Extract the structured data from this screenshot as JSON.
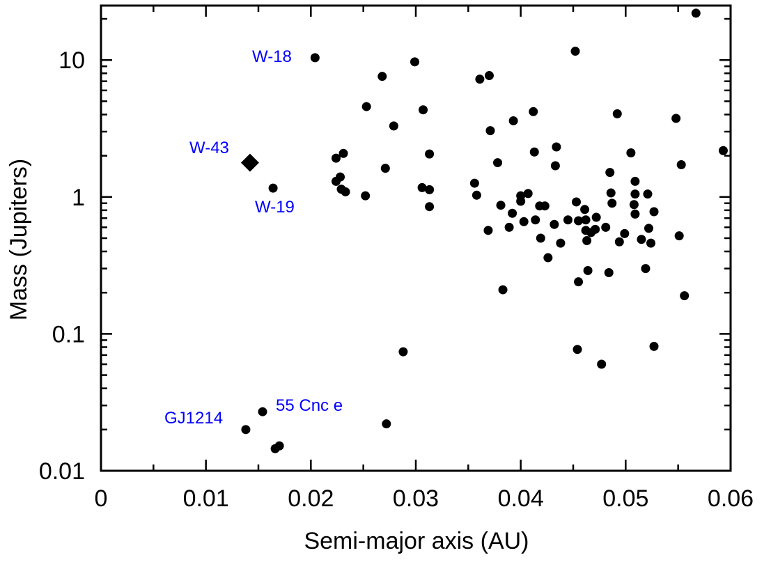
{
  "chart_data": {
    "type": "scatter",
    "title": "",
    "xlabel": "Semi-major axis (AU)",
    "ylabel": "Mass (Jupiters)",
    "xlim": [
      0,
      0.06
    ],
    "ylim": [
      0.01,
      25
    ],
    "yscale": "log",
    "grid": false,
    "x_ticks": [
      0,
      0.01,
      0.02,
      0.03,
      0.04,
      0.05,
      0.06
    ],
    "x_tick_labels": [
      "0",
      "0.01",
      "0.02",
      "0.03",
      "0.04",
      "0.05",
      "0.06"
    ],
    "y_ticks": [
      0.01,
      0.1,
      1,
      10
    ],
    "y_tick_labels": [
      "0.01",
      "0.1",
      "1",
      "10"
    ],
    "series": [
      {
        "marker": "circle",
        "color": "#000000",
        "points": [
          [
            0.0204,
            10.4
          ],
          [
            0.0164,
            1.16
          ],
          [
            0.0154,
            0.027
          ],
          [
            0.0138,
            0.02
          ],
          [
            0.0166,
            0.0145
          ],
          [
            0.017,
            0.0152
          ],
          [
            0.0224,
            1.92
          ],
          [
            0.0231,
            2.08
          ],
          [
            0.0224,
            1.3
          ],
          [
            0.0228,
            1.4
          ],
          [
            0.0229,
            1.14
          ],
          [
            0.0233,
            1.09
          ],
          [
            0.0253,
            4.57
          ],
          [
            0.0252,
            1.02
          ],
          [
            0.0268,
            7.6
          ],
          [
            0.0271,
            1.62
          ],
          [
            0.0279,
            3.3
          ],
          [
            0.0299,
            9.7
          ],
          [
            0.0307,
            4.33
          ],
          [
            0.0306,
            1.17
          ],
          [
            0.0313,
            2.06
          ],
          [
            0.0313,
            1.13
          ],
          [
            0.0313,
            0.85
          ],
          [
            0.0288,
            0.074
          ],
          [
            0.0272,
            0.022
          ],
          [
            0.0356,
            1.26
          ],
          [
            0.0358,
            1.03
          ],
          [
            0.0361,
            7.25
          ],
          [
            0.037,
            7.7
          ],
          [
            0.0371,
            3.05
          ],
          [
            0.0369,
            0.57
          ],
          [
            0.0378,
            1.78
          ],
          [
            0.0381,
            0.87
          ],
          [
            0.0383,
            0.21
          ],
          [
            0.0393,
            3.6
          ],
          [
            0.0389,
            0.6
          ],
          [
            0.0392,
            0.76
          ],
          [
            0.04,
            1.02
          ],
          [
            0.04,
            0.93
          ],
          [
            0.0403,
            0.66
          ],
          [
            0.0407,
            1.06
          ],
          [
            0.0412,
            4.2
          ],
          [
            0.0413,
            2.13
          ],
          [
            0.0414,
            0.68
          ],
          [
            0.0418,
            0.86
          ],
          [
            0.0419,
            0.5
          ],
          [
            0.0423,
            0.86
          ],
          [
            0.0426,
            0.36
          ],
          [
            0.0433,
            1.69
          ],
          [
            0.0434,
            2.32
          ],
          [
            0.0432,
            0.63
          ],
          [
            0.0438,
            0.46
          ],
          [
            0.0445,
            0.68
          ],
          [
            0.0452,
            11.6
          ],
          [
            0.0453,
            0.92
          ],
          [
            0.0455,
            0.67
          ],
          [
            0.0455,
            0.24
          ],
          [
            0.0454,
            0.077
          ],
          [
            0.0461,
            0.81
          ],
          [
            0.0462,
            0.68
          ],
          [
            0.0462,
            0.57
          ],
          [
            0.0463,
            0.48
          ],
          [
            0.0464,
            0.29
          ],
          [
            0.0467,
            0.55
          ],
          [
            0.0471,
            0.58
          ],
          [
            0.0472,
            0.71
          ],
          [
            0.0477,
            0.06
          ],
          [
            0.0481,
            0.6
          ],
          [
            0.0484,
            0.28
          ],
          [
            0.0485,
            1.51
          ],
          [
            0.0486,
            1.07
          ],
          [
            0.0487,
            0.9
          ],
          [
            0.0492,
            4.05
          ],
          [
            0.0494,
            0.47
          ],
          [
            0.0499,
            0.54
          ],
          [
            0.0505,
            2.1
          ],
          [
            0.0508,
            0.88
          ],
          [
            0.0509,
            0.75
          ],
          [
            0.0509,
            1.3
          ],
          [
            0.0509,
            1.05
          ],
          [
            0.0515,
            0.49
          ],
          [
            0.0519,
            0.3
          ],
          [
            0.0521,
            1.05
          ],
          [
            0.0522,
            0.59
          ],
          [
            0.0524,
            0.46
          ],
          [
            0.0527,
            0.78
          ],
          [
            0.0527,
            0.081
          ],
          [
            0.0548,
            3.75
          ],
          [
            0.0551,
            0.52
          ],
          [
            0.0553,
            1.72
          ],
          [
            0.0556,
            0.19
          ],
          [
            0.0567,
            22.0
          ],
          [
            0.0593,
            2.18
          ]
        ]
      },
      {
        "marker": "diamond",
        "color": "#000000",
        "points": [
          [
            0.0142,
            1.78
          ]
        ]
      }
    ],
    "annotations": [
      {
        "text": "W-18",
        "x": 0.0204,
        "y": 10.4,
        "color": "#0000ff"
      },
      {
        "text": "W-43",
        "x": 0.0142,
        "y": 1.78,
        "color": "#0000ff"
      },
      {
        "text": "W-19",
        "x": 0.0164,
        "y": 1.16,
        "color": "#0000ff"
      },
      {
        "text": "55 Cnc e",
        "x": 0.0154,
        "y": 0.027,
        "color": "#0000ff"
      },
      {
        "text": "GJ1214",
        "x": 0.0138,
        "y": 0.02,
        "color": "#0000ff"
      }
    ]
  }
}
